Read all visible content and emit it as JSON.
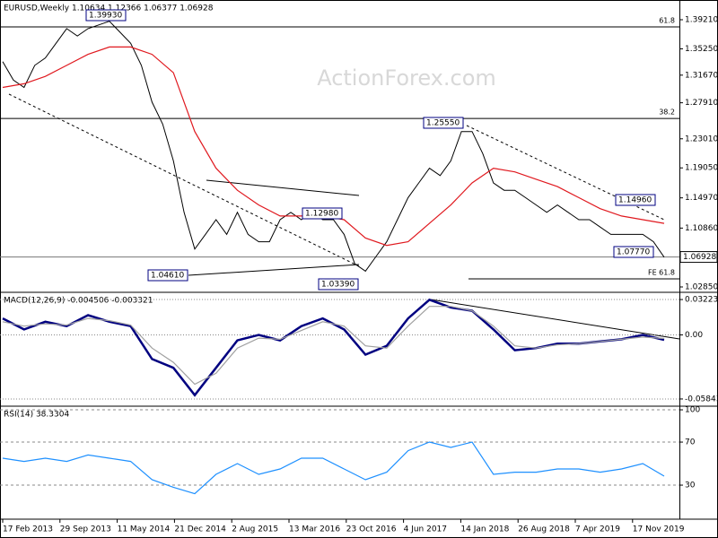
{
  "chart_data": [
    {
      "type": "line",
      "title": "EURUSD,Weekly 1.10634 1.12366 1.06377 1.06928",
      "watermark": "ActionForex.com",
      "ylim": [
        1.0224,
        1.4153
      ],
      "yticks": [
        {
          "value": 1.3921,
          "label": "1.39210"
        },
        {
          "value": 1.3525,
          "label": "1.35250"
        },
        {
          "value": 1.3167,
          "label": "1.31670"
        },
        {
          "value": 1.2791,
          "label": "1.27910"
        },
        {
          "value": 1.2301,
          "label": "1.23010"
        },
        {
          "value": 1.1905,
          "label": "1.19050"
        },
        {
          "value": 1.1497,
          "label": "1.14970"
        },
        {
          "value": 1.1086,
          "label": "1.10860"
        },
        {
          "value": 1.0285,
          "label": "1.02850"
        }
      ],
      "last_price": {
        "value": 1.06928,
        "label": "1.06928"
      },
      "levels": [
        {
          "label": "61.8",
          "value": 1.3823
        },
        {
          "label": "38.2",
          "value": 1.2577
        },
        {
          "label": "FE 61.8",
          "value": 1.0395
        }
      ],
      "price_labels": [
        "1.39930",
        "1.25550",
        "1.14960",
        "1.07770",
        "1.04610",
        "1.03390",
        "1.12980"
      ],
      "series": [
        {
          "color": "#000000",
          "values": [
            1.335,
            1.31,
            1.3,
            1.33,
            1.34,
            1.36,
            1.38,
            1.37,
            1.38,
            1.385,
            1.39,
            1.375,
            1.36,
            1.33,
            1.28,
            1.25,
            1.2,
            1.13,
            1.08,
            1.1,
            1.12,
            1.1,
            1.13,
            1.1,
            1.09,
            1.09,
            1.12,
            1.13,
            1.12,
            1.13,
            1.12,
            1.12,
            1.1,
            1.06,
            1.05,
            1.07,
            1.09,
            1.12,
            1.15,
            1.17,
            1.19,
            1.18,
            1.2,
            1.24,
            1.24,
            1.21,
            1.17,
            1.16,
            1.16,
            1.15,
            1.14,
            1.13,
            1.14,
            1.13,
            1.12,
            1.12,
            1.11,
            1.1,
            1.1,
            1.1,
            1.1,
            1.09,
            1.069
          ]
        },
        {
          "color": "#e0191f",
          "values": [
            1.3,
            1.305,
            1.315,
            1.33,
            1.345,
            1.355,
            1.355,
            1.345,
            1.32,
            1.24,
            1.19,
            1.16,
            1.14,
            1.125,
            1.125,
            1.125,
            1.12,
            1.095,
            1.085,
            1.09,
            1.115,
            1.14,
            1.17,
            1.19,
            1.185,
            1.175,
            1.165,
            1.15,
            1.135,
            1.125,
            1.12,
            1.115
          ]
        }
      ]
    },
    {
      "type": "line",
      "title": "MACD(12,26,9) -0.004506 -0.003321",
      "ylim": [
        -0.0642,
        0.038
      ],
      "yticks": [
        0.032235,
        {
          "value": 0,
          "label": "0.00"
        },
        -0.058434
      ],
      "series": [
        {
          "color": "#000080",
          "values": [
            0.015,
            0.005,
            0.012,
            0.008,
            0.018,
            0.012,
            0.008,
            -0.022,
            -0.03,
            -0.055,
            -0.03,
            -0.005,
            0.0,
            -0.005,
            0.008,
            0.015,
            0.005,
            -0.018,
            -0.01,
            0.015,
            0.032,
            0.025,
            0.022,
            0.005,
            -0.014,
            -0.012,
            -0.008,
            -0.008,
            -0.006,
            -0.004,
            0.0,
            -0.004506
          ]
        },
        {
          "color": "#a0a0a0",
          "values": [
            0.012,
            0.008,
            0.01,
            0.009,
            0.015,
            0.013,
            0.009,
            -0.012,
            -0.025,
            -0.045,
            -0.035,
            -0.012,
            -0.003,
            -0.004,
            0.004,
            0.012,
            0.008,
            -0.01,
            -0.012,
            0.008,
            0.026,
            0.026,
            0.022,
            0.008,
            -0.01,
            -0.012,
            -0.009,
            -0.008,
            -0.006,
            -0.004,
            -0.002,
            -0.003321
          ]
        }
      ]
    },
    {
      "type": "line",
      "title": "RSI(14) 38.3304",
      "ylim": [
        -0.8,
        101.7
      ],
      "yticks": [
        100,
        70,
        30
      ],
      "series": [
        {
          "color": "#1e90ff",
          "values": [
            55,
            52,
            55,
            52,
            58,
            55,
            52,
            35,
            28,
            22,
            40,
            50,
            40,
            45,
            55,
            55,
            45,
            35,
            42,
            62,
            70,
            65,
            70,
            40,
            42,
            42,
            45,
            45,
            42,
            45,
            50,
            38.3304
          ]
        }
      ]
    }
  ],
  "x_axis_labels": [
    "17 Feb 2013",
    "29 Sep 2013",
    "11 May 2014",
    "21 Dec 2014",
    "2 Aug 2015",
    "13 Mar 2016",
    "23 Oct 2016",
    "4 Jun 2017",
    "14 Jan 2018",
    "26 Aug 2018",
    "7 Apr 2019",
    "17 Nov 2019"
  ]
}
